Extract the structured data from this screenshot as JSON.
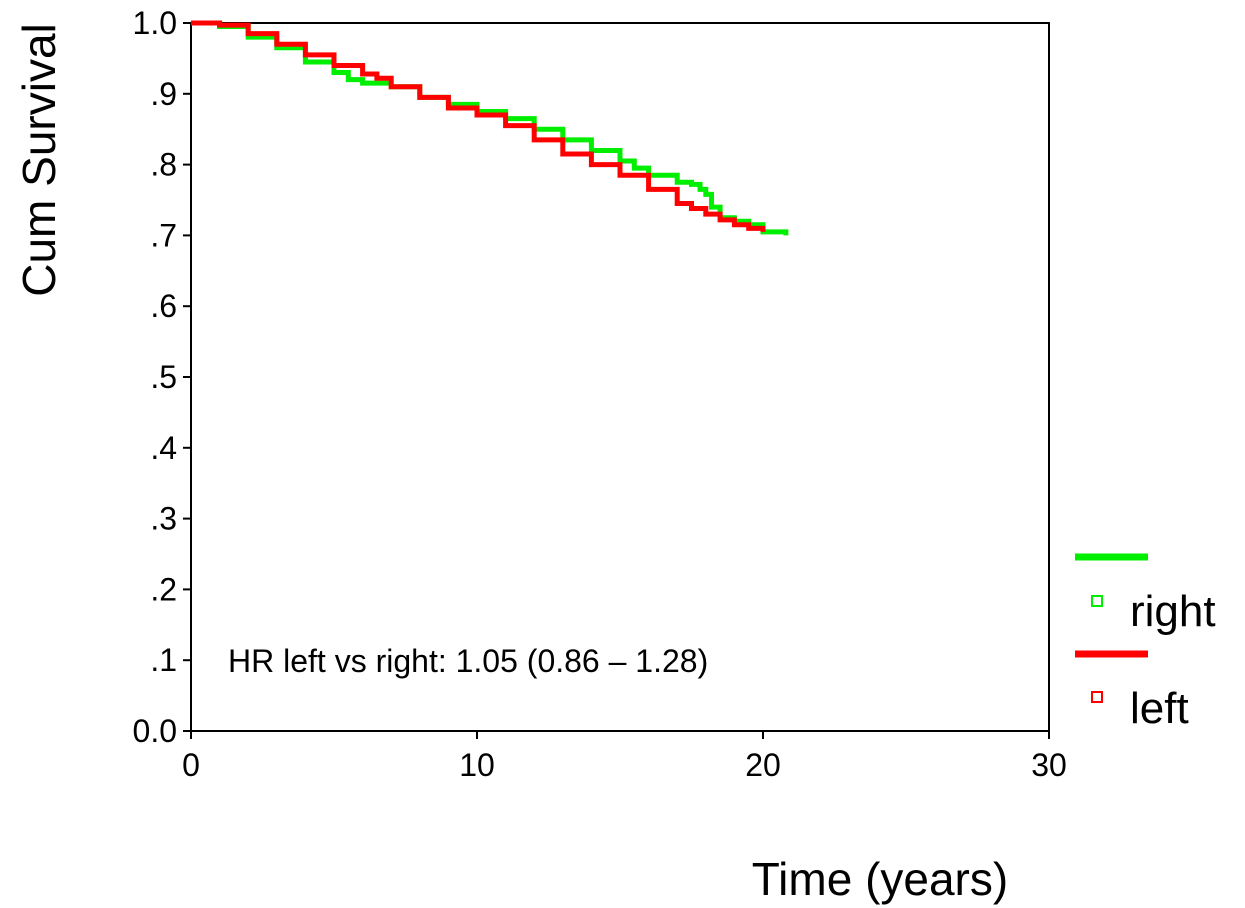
{
  "chart_data": {
    "type": "line",
    "title": "",
    "xlabel": "Time (years)",
    "ylabel": "Cum Survival",
    "xlim": [
      0,
      30
    ],
    "ylim": [
      0,
      1
    ],
    "xticks": [
      0,
      10,
      20,
      30
    ],
    "xtick_labels": [
      "0",
      "10",
      "20",
      "30"
    ],
    "yticks": [
      0.0,
      0.1,
      0.2,
      0.3,
      0.4,
      0.5,
      0.6,
      0.7,
      0.8,
      0.9,
      1.0
    ],
    "ytick_labels": [
      "0.0",
      ".1",
      ".2",
      ".3",
      ".4",
      ".5",
      ".6",
      ".7",
      ".8",
      ".9",
      "1.0"
    ],
    "grid": false,
    "legend_position": "right",
    "annotation": "HR left vs right: 1.05 (0.86 – 1.28)",
    "series": [
      {
        "name": "right",
        "color": "#00ee00",
        "step": true,
        "x": [
          0,
          1,
          2,
          3,
          4,
          5,
          5.5,
          6,
          7,
          8,
          9,
          10,
          11,
          12,
          13,
          14,
          15,
          15.5,
          16,
          17,
          17.5,
          17.8,
          18,
          18.2,
          18.5,
          19,
          19.5,
          20,
          20.5,
          20.8
        ],
        "y": [
          1.0,
          0.995,
          0.98,
          0.965,
          0.945,
          0.93,
          0.92,
          0.915,
          0.91,
          0.895,
          0.885,
          0.875,
          0.865,
          0.85,
          0.835,
          0.82,
          0.805,
          0.795,
          0.785,
          0.775,
          0.772,
          0.765,
          0.758,
          0.74,
          0.725,
          0.72,
          0.715,
          0.705,
          0.705,
          0.7
        ]
      },
      {
        "name": "left",
        "color": "#ff0000",
        "step": true,
        "x": [
          0,
          1,
          2,
          3,
          4,
          5,
          6,
          6.5,
          7,
          8,
          9,
          10,
          11,
          12,
          13,
          14,
          15,
          16,
          17,
          17.5,
          18,
          18.5,
          19,
          19.5,
          20
        ],
        "y": [
          1.0,
          0.997,
          0.985,
          0.97,
          0.955,
          0.94,
          0.928,
          0.922,
          0.91,
          0.895,
          0.88,
          0.87,
          0.855,
          0.835,
          0.815,
          0.8,
          0.785,
          0.765,
          0.745,
          0.738,
          0.73,
          0.722,
          0.715,
          0.71,
          0.705
        ]
      }
    ]
  }
}
